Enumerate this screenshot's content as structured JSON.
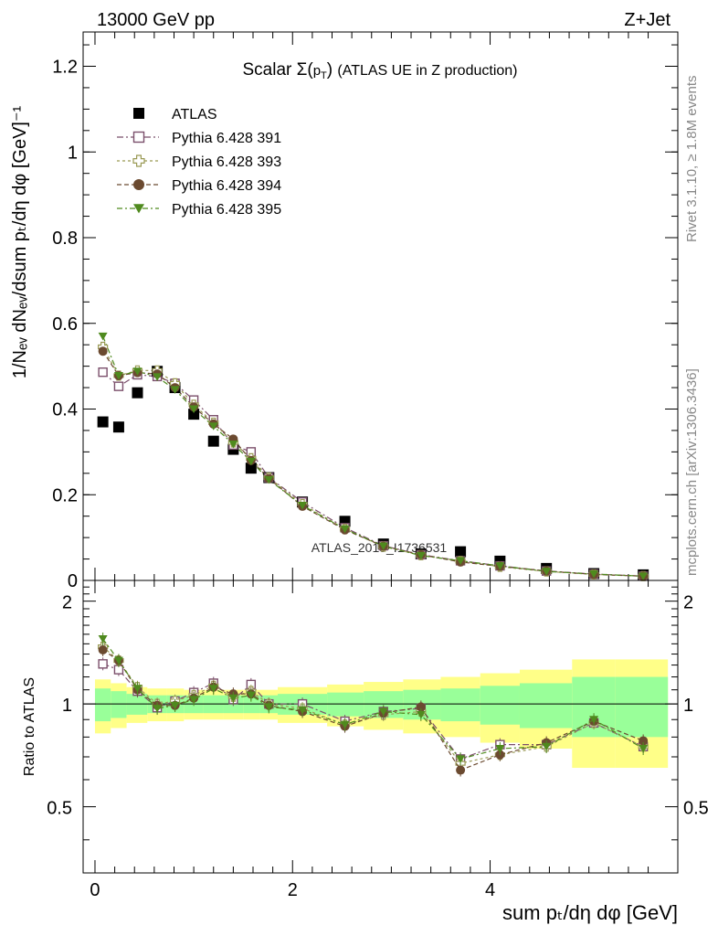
{
  "header": {
    "left": "13000 GeV pp",
    "right": "Z+Jet"
  },
  "side_labels": {
    "rivet": "Rivet 3.1.10, ≥ 1.8M events",
    "mcplots": "mcplots.cern.ch [arXiv:1306.3436]"
  },
  "chart_data": [
    {
      "type": "scatter",
      "panel": "main",
      "title": "Scalar Σ(pT) (ATLAS UE in Z production)",
      "ylabel": "1/Nev dNev/dsum pT/dη dφ [GeV]^-1",
      "xlabel": "sum pT/dη dφ [GeV]",
      "watermark": "ATLAS_2019_I1736531",
      "xlim": [
        -0.12,
        5.9
      ],
      "ylim": [
        0,
        1.28
      ],
      "yticks": [
        0,
        0.2,
        0.4,
        0.6,
        0.8,
        1,
        1.2
      ],
      "ytick_labels": [
        "0",
        "0.2",
        "0.4",
        "0.6",
        "0.8",
        "1",
        "1.2"
      ],
      "legend_position": "top-left",
      "x": [
        0.08,
        0.24,
        0.43,
        0.63,
        0.81,
        1.0,
        1.2,
        1.4,
        1.58,
        1.76,
        2.1,
        2.53,
        2.92,
        3.3,
        3.7,
        4.1,
        4.57,
        5.05,
        5.55
      ],
      "series": [
        {
          "name": "ATLAS",
          "marker": "square-filled",
          "color": "#000000",
          "values": [
            0.37,
            0.358,
            0.438,
            0.488,
            0.45,
            0.388,
            0.325,
            0.306,
            0.262,
            0.24,
            0.183,
            0.138,
            0.085,
            0.062,
            0.067,
            0.045,
            0.028,
            0.016,
            0.013
          ]
        },
        {
          "name": "Pythia 6.428 391",
          "marker": "square-open",
          "color": "#7b4f6b",
          "values": [
            0.486,
            0.453,
            0.48,
            0.476,
            0.46,
            0.421,
            0.375,
            0.316,
            0.3,
            0.24,
            0.183,
            0.123,
            0.081,
            0.06,
            0.046,
            0.034,
            0.022,
            0.015,
            0.01
          ]
        },
        {
          "name": "Pythia 6.428 393",
          "marker": "cross-open",
          "color": "#9a9a55",
          "values": [
            0.545,
            0.478,
            0.49,
            0.49,
            0.46,
            0.41,
            0.368,
            0.322,
            0.285,
            0.24,
            0.178,
            0.12,
            0.079,
            0.059,
            0.045,
            0.032,
            0.021,
            0.014,
            0.01
          ]
        },
        {
          "name": "Pythia 6.428 394",
          "marker": "circle-filled",
          "color": "#6b4a30",
          "values": [
            0.535,
            0.478,
            0.485,
            0.482,
            0.45,
            0.405,
            0.365,
            0.33,
            0.28,
            0.238,
            0.173,
            0.118,
            0.08,
            0.06,
            0.043,
            0.033,
            0.022,
            0.014,
            0.01
          ]
        },
        {
          "name": "Pythia 6.428 395",
          "marker": "triangle-down-filled",
          "color": "#4f8a1e",
          "values": [
            0.57,
            0.478,
            0.488,
            0.475,
            0.445,
            0.4,
            0.36,
            0.318,
            0.278,
            0.235,
            0.175,
            0.12,
            0.08,
            0.058,
            0.046,
            0.034,
            0.021,
            0.015,
            0.01
          ]
        }
      ]
    },
    {
      "type": "scatter",
      "panel": "ratio",
      "ylabel": "Ratio to ATLAS",
      "xlabel": "sum pT/dη dφ [GeV]",
      "xlim": [
        -0.12,
        5.9
      ],
      "ylim": [
        0.32,
        2.3
      ],
      "yscale": "log",
      "yticks": [
        0.5,
        1,
        2
      ],
      "ytick_labels": [
        "0.5",
        "1",
        "2"
      ],
      "xticks": [
        0,
        2,
        4
      ],
      "xtick_labels": [
        "0",
        "2",
        "4"
      ],
      "reference_line": 1,
      "bins": [
        [
          0.0,
          0.16
        ],
        [
          0.16,
          0.32
        ],
        [
          0.32,
          0.53
        ],
        [
          0.53,
          0.73
        ],
        [
          0.73,
          0.9
        ],
        [
          0.9,
          1.1
        ],
        [
          1.1,
          1.3
        ],
        [
          1.3,
          1.5
        ],
        [
          1.5,
          1.67
        ],
        [
          1.67,
          1.85
        ],
        [
          1.85,
          2.35
        ],
        [
          2.35,
          2.72
        ],
        [
          2.72,
          3.12
        ],
        [
          3.12,
          3.5
        ],
        [
          3.5,
          3.9
        ],
        [
          3.9,
          4.3
        ],
        [
          4.3,
          4.83
        ],
        [
          4.83,
          5.27
        ],
        [
          5.27,
          5.8
        ]
      ],
      "band_1sigma": [
        0.11,
        0.09,
        0.07,
        0.06,
        0.06,
        0.06,
        0.06,
        0.06,
        0.06,
        0.06,
        0.07,
        0.08,
        0.09,
        0.1,
        0.11,
        0.13,
        0.15,
        0.2,
        0.2
      ],
      "band_2sigma": [
        0.18,
        0.15,
        0.12,
        0.11,
        0.11,
        0.1,
        0.1,
        0.1,
        0.1,
        0.1,
        0.12,
        0.14,
        0.16,
        0.18,
        0.2,
        0.23,
        0.26,
        0.35,
        0.35
      ],
      "band_colors": {
        "inner": "#99ff99",
        "outer": "#ffff88"
      },
      "series": [
        {
          "name": "Pythia 6.428 391",
          "marker": "square-open",
          "color": "#7b4f6b",
          "values": [
            1.31,
            1.26,
            1.09,
            0.975,
            1.02,
            1.08,
            1.15,
            1.03,
            1.14,
            1.0,
            1.0,
            0.89,
            0.95,
            0.97,
            0.69,
            0.76,
            0.76,
            0.88,
            0.75
          ]
        },
        {
          "name": "Pythia 6.428 393",
          "marker": "cross-open",
          "color": "#9a9a55",
          "values": [
            1.47,
            1.34,
            1.12,
            1.0,
            1.02,
            1.06,
            1.13,
            1.05,
            1.09,
            1.0,
            0.97,
            0.87,
            0.93,
            0.95,
            0.67,
            0.71,
            0.75,
            0.88,
            0.75
          ]
        },
        {
          "name": "Pythia 6.428 394",
          "marker": "circle-filled",
          "color": "#6b4a30",
          "values": [
            1.44,
            1.34,
            1.1,
            0.99,
            0.99,
            1.04,
            1.12,
            1.07,
            1.07,
            0.99,
            0.95,
            0.86,
            0.94,
            0.98,
            0.64,
            0.71,
            0.77,
            0.89,
            0.78
          ]
        },
        {
          "name": "Pythia 6.428 395",
          "marker": "triangle-down-filled",
          "color": "#4f8a1e",
          "values": [
            1.55,
            1.34,
            1.11,
            0.97,
            0.99,
            1.03,
            1.11,
            1.04,
            1.06,
            0.98,
            0.96,
            0.87,
            0.95,
            0.93,
            0.69,
            0.74,
            0.75,
            0.9,
            0.74
          ]
        }
      ]
    }
  ]
}
